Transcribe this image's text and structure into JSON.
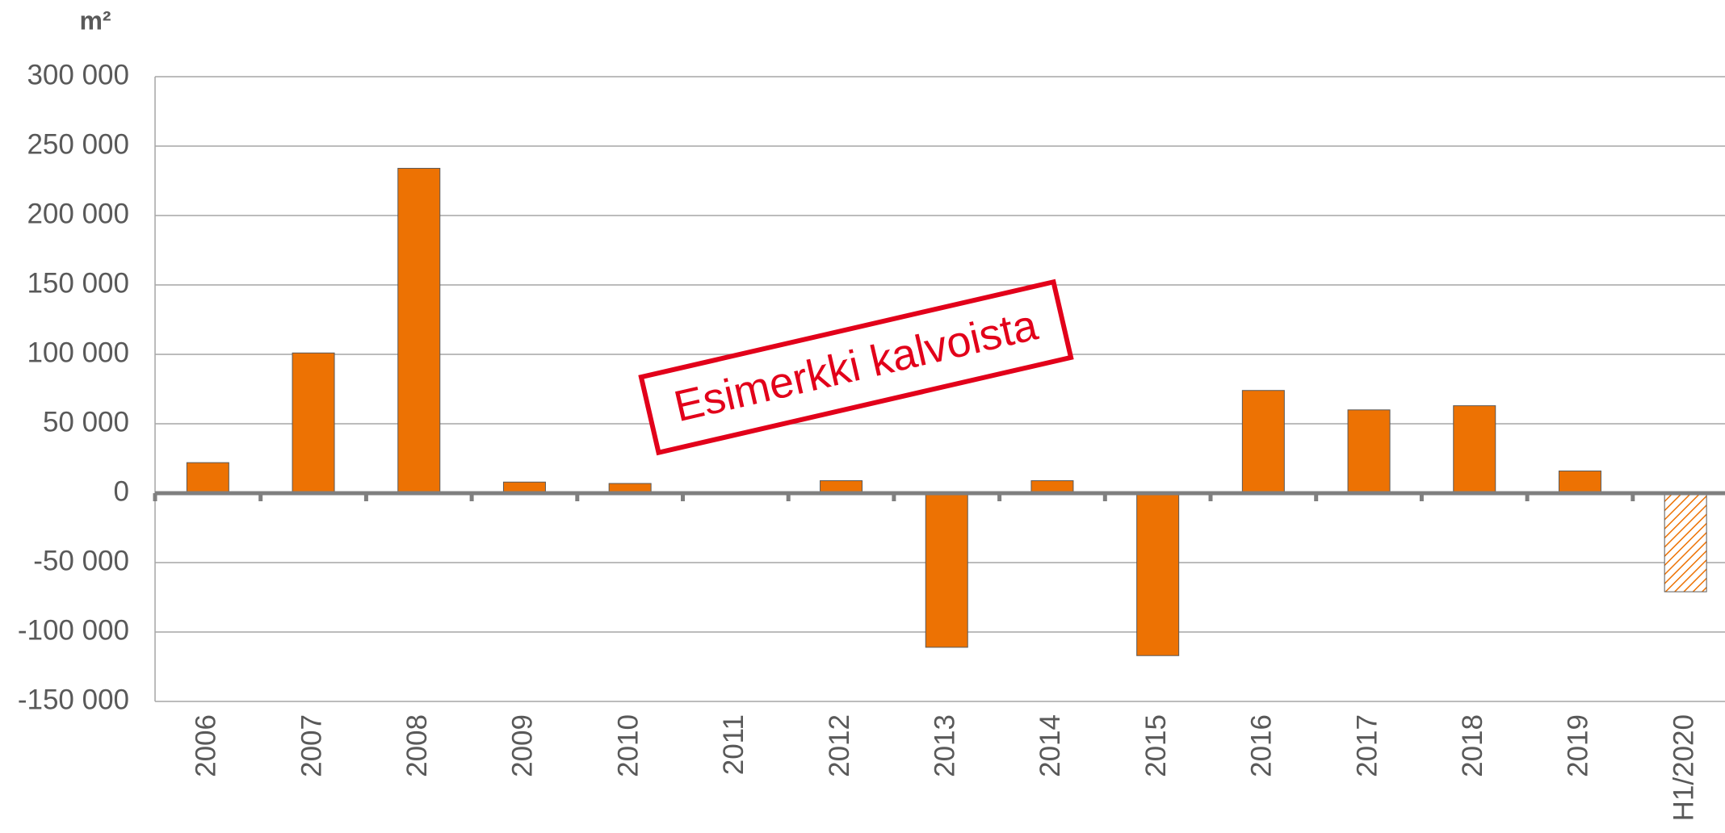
{
  "chart_data": {
    "type": "bar",
    "unit_label": "m²",
    "annotation": "Esimerkki kalvoista",
    "categories": [
      "2006",
      "2007",
      "2008",
      "2009",
      "2010",
      "2011",
      "2012",
      "2013",
      "2014",
      "2015",
      "2016",
      "2017",
      "2018",
      "2019",
      "H1/2020"
    ],
    "values": [
      22000,
      101000,
      234000,
      8000,
      7000,
      1000,
      9000,
      -111000,
      9000,
      -117000,
      74000,
      60000,
      63000,
      16000,
      -71000
    ],
    "hatched": [
      false,
      false,
      false,
      false,
      false,
      false,
      false,
      false,
      false,
      false,
      false,
      false,
      false,
      false,
      true
    ],
    "color": "#ed7203",
    "ylim": [
      -150000,
      300000
    ],
    "yticks": [
      {
        "value": -150000,
        "label": "-150 000"
      },
      {
        "value": -100000,
        "label": "-100 000"
      },
      {
        "value": -50000,
        "label": "-50 000"
      },
      0,
      {
        "value": 50000,
        "label": "50 000"
      },
      {
        "value": 100000,
        "label": "100 000"
      },
      {
        "value": 150000,
        "label": "150 000"
      },
      {
        "value": 200000,
        "label": "200 000"
      },
      {
        "value": 250000,
        "label": "250 000"
      },
      {
        "value": 300000,
        "label": "300 000"
      }
    ],
    "grid": true
  }
}
